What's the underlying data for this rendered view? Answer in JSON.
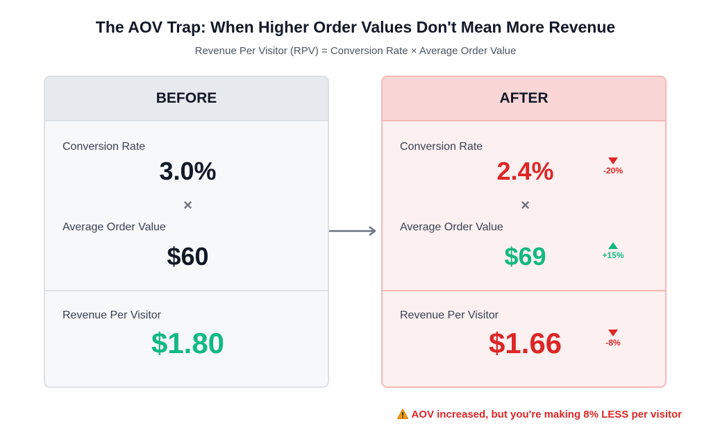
{
  "title": "The AOV Trap: When Higher Order Values Don't Mean More Revenue",
  "subtitle": "Revenue Per Visitor (RPV) = Conversion Rate × Average Order Value",
  "before": {
    "heading": "BEFORE",
    "conversion_label": "Conversion Rate",
    "conversion_value": "3.0%",
    "operator": "×",
    "aov_label": "Average Order Value",
    "aov_value": "$60",
    "rpv_label": "Revenue Per Visitor",
    "rpv_value": "$1.80"
  },
  "after": {
    "heading": "AFTER",
    "conversion_label": "Conversion Rate",
    "conversion_value": "2.4%",
    "conversion_change": "-20%",
    "operator": "×",
    "aov_label": "Average Order Value",
    "aov_value": "$69",
    "aov_change": "+15%",
    "rpv_label": "Revenue Per Visitor",
    "rpv_value": "$1.66",
    "rpv_change": "-8%"
  },
  "warning": "AOV increased, but you're making 8% LESS per visitor",
  "icons": {
    "transition": "arrow-right-icon",
    "decrease": "triangle-down-icon",
    "increase": "triangle-up-icon",
    "warning": "warning-icon",
    "multiply": "multiply-icon"
  },
  "colors": {
    "negative": "#dc2626",
    "positive": "#10b981",
    "before_panel": "#f7f8fa",
    "after_panel": "#fdf0f0"
  }
}
